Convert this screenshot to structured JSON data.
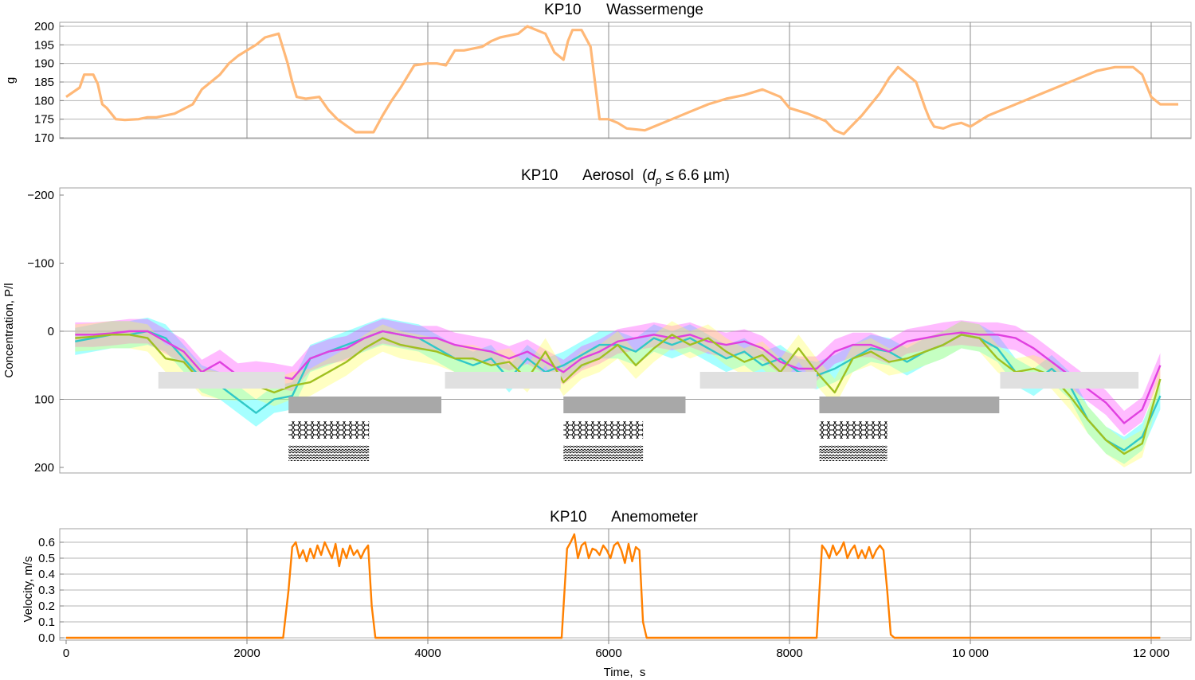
{
  "chart_data": [
    {
      "type": "line",
      "title": "KP10      Wassermenge",
      "ylabel": "g",
      "xlabel": "",
      "xlim": [
        0,
        12350
      ],
      "ylim": [
        170,
        200
      ],
      "xticks": [
        2000,
        4000,
        6000,
        8000,
        10000,
        12000
      ],
      "yticks": [
        170,
        175,
        180,
        185,
        190,
        195,
        200
      ],
      "ytick_labels": [
        "170",
        "175",
        "180",
        "185",
        "190",
        "195",
        "200"
      ],
      "grid": true,
      "series": [
        {
          "color": "#ffb877",
          "x": [
            0,
            150,
            200,
            300,
            350,
            400,
            450,
            550,
            650,
            800,
            900,
            1000,
            1200,
            1400,
            1500,
            1700,
            1800,
            1900,
            2000,
            2100,
            2200,
            2350,
            2450,
            2500,
            2550,
            2650,
            2800,
            2900,
            3000,
            3200,
            3300,
            3400,
            3500,
            3600,
            3700,
            3850,
            4000,
            4100,
            4200,
            4300,
            4400,
            4600,
            4700,
            4800,
            5000,
            5100,
            5300,
            5400,
            5500,
            5550,
            5600,
            5700,
            5800,
            5900,
            6000,
            6100,
            6200,
            6400,
            6500,
            6700,
            6900,
            7100,
            7300,
            7500,
            7700,
            7900,
            8000,
            8200,
            8400,
            8500,
            8600,
            8800,
            9000,
            9100,
            9200,
            9400,
            9500,
            9550,
            9600,
            9700,
            9800,
            9900,
            10000,
            10200,
            10400,
            10600,
            10800,
            11000,
            11200,
            11400,
            11600,
            11800,
            11900,
            12000,
            12100,
            12300
          ],
          "y": [
            181,
            183.5,
            187,
            187,
            184.5,
            179,
            178,
            175,
            174.8,
            175,
            175.5,
            175.5,
            176.5,
            179,
            183,
            187,
            190,
            192,
            193.5,
            195,
            197,
            198,
            190,
            185,
            181,
            180.5,
            181,
            177.5,
            175,
            171.5,
            171.5,
            171.5,
            176,
            180,
            183.5,
            189.5,
            190,
            190,
            189.5,
            193.5,
            193.5,
            194.5,
            196,
            197,
            198,
            200,
            198,
            193,
            191,
            196,
            199,
            199,
            194.5,
            175,
            175,
            174,
            172.5,
            172,
            173,
            175,
            177,
            179,
            180.5,
            181.5,
            183,
            181,
            178,
            176.5,
            174.5,
            172,
            171,
            176,
            182,
            186,
            189,
            185,
            178,
            175,
            173,
            172.5,
            173.5,
            174,
            173,
            176,
            178,
            180,
            182,
            184,
            186,
            188,
            189,
            189,
            187,
            181,
            179,
            179
          ]
        }
      ]
    },
    {
      "type": "area",
      "title": "KP10      Aerosol  (dp ≤ 6.6 µm)",
      "title_parts": {
        "main": "KP10      Aerosol  (",
        "sym": "d",
        "sub": "p",
        "tail": " ≤ 6.6 µm)"
      },
      "ylabel": "Concentration,  P/l",
      "xlabel": "",
      "xlim": [
        0,
        12350
      ],
      "ylim": [
        -210,
        210
      ],
      "yticks": [
        -200,
        -100,
        0,
        100,
        200
      ],
      "ytick_labels": [
        "−200",
        "−100",
        "0",
        "100",
        "200"
      ],
      "grid": "y-major",
      "series": [
        {
          "color": "#30c8c8",
          "band_color": "#00ffff",
          "band_halfwidth": 20,
          "x": [
            100,
            300,
            500,
            700,
            900,
            1100,
            1300,
            1500,
            1700,
            1900,
            2100,
            2300,
            2500,
            2700,
            2900,
            3100,
            3300,
            3500,
            3700,
            3900,
            4100,
            4300,
            4500,
            4700,
            4900,
            5100,
            5300,
            5500,
            5700,
            5900,
            6100,
            6300,
            6500,
            6700,
            6900,
            7100,
            7300,
            7500,
            7700,
            7900,
            8100,
            8300,
            8500,
            8700,
            8900,
            9100,
            9300,
            9500,
            9700,
            9900,
            10100,
            10300,
            10500,
            10700,
            10900,
            11100,
            11300,
            11500,
            11700,
            11900,
            12100
          ],
          "y": [
            15,
            10,
            5,
            5,
            0,
            10,
            40,
            70,
            80,
            100,
            120,
            100,
            95,
            40,
            30,
            20,
            10,
            0,
            5,
            10,
            25,
            40,
            50,
            40,
            70,
            40,
            60,
            50,
            35,
            20,
            20,
            30,
            10,
            20,
            10,
            25,
            40,
            30,
            50,
            40,
            60,
            65,
            55,
            40,
            25,
            30,
            45,
            30,
            20,
            5,
            10,
            25,
            60,
            75,
            55,
            80,
            130,
            160,
            175,
            155,
            95
          ]
        },
        {
          "color": "#e040e0",
          "band_color": "#ff3cff",
          "band_halfwidth": 18,
          "x": [
            100,
            300,
            500,
            700,
            900,
            1100,
            1300,
            1500,
            1700,
            1900,
            2100,
            2300,
            2500,
            2700,
            2900,
            3100,
            3300,
            3500,
            3700,
            3900,
            4100,
            4300,
            4500,
            4700,
            4900,
            5100,
            5300,
            5500,
            5700,
            5900,
            6100,
            6300,
            6500,
            6700,
            6900,
            7100,
            7300,
            7500,
            7700,
            7900,
            8100,
            8300,
            8500,
            8700,
            8900,
            9100,
            9300,
            9500,
            9700,
            9900,
            10100,
            10300,
            10500,
            10700,
            10900,
            11100,
            11300,
            11500,
            11700,
            11900,
            12100
          ],
          "y": [
            5,
            5,
            3,
            0,
            0,
            15,
            30,
            60,
            45,
            65,
            62,
            65,
            70,
            40,
            30,
            25,
            10,
            0,
            5,
            10,
            10,
            20,
            25,
            30,
            40,
            30,
            45,
            60,
            40,
            30,
            15,
            10,
            5,
            10,
            5,
            15,
            20,
            15,
            25,
            45,
            55,
            55,
            30,
            20,
            20,
            30,
            15,
            10,
            5,
            2,
            5,
            5,
            10,
            25,
            45,
            65,
            85,
            105,
            135,
            115,
            50
          ]
        },
        {
          "color": "#a0c020",
          "band_color": "#ffff50",
          "band_halfwidth": 20,
          "x": [
            100,
            300,
            500,
            700,
            900,
            1100,
            1300,
            1500,
            1700,
            1900,
            2100,
            2300,
            2500,
            2700,
            2900,
            3100,
            3300,
            3500,
            3700,
            3900,
            4100,
            4300,
            4500,
            4700,
            4900,
            5100,
            5300,
            5500,
            5700,
            5900,
            6100,
            6300,
            6500,
            6700,
            6900,
            7100,
            7300,
            7500,
            7700,
            7900,
            8100,
            8300,
            8500,
            8700,
            8900,
            9100,
            9300,
            9500,
            9700,
            9900,
            10100,
            10300,
            10500,
            10700,
            10900,
            11100,
            11300,
            11500,
            11700,
            11900,
            12100
          ],
          "y": [
            10,
            8,
            5,
            5,
            10,
            40,
            45,
            75,
            80,
            82,
            80,
            90,
            80,
            75,
            60,
            45,
            25,
            10,
            20,
            25,
            30,
            40,
            40,
            50,
            45,
            70,
            30,
            75,
            50,
            40,
            20,
            50,
            25,
            5,
            20,
            10,
            30,
            45,
            35,
            60,
            25,
            60,
            90,
            40,
            30,
            45,
            40,
            30,
            20,
            5,
            10,
            40,
            60,
            55,
            65,
            95,
            130,
            160,
            180,
            165,
            70
          ]
        }
      ],
      "highlight_boxes": [
        {
          "x0": 1220,
          "x1": 2420,
          "y0": -50,
          "y1": 200,
          "color": "#88e288",
          "fill_y0": -50,
          "fill_y1": -25
        },
        {
          "x0": 4270,
          "x1": 5470,
          "y0": -50,
          "y1": 200,
          "color": "#6a6af0",
          "fill_y0": -50,
          "fill_y1": -25
        },
        {
          "x0": 7080,
          "x1": 8300,
          "y0": -50,
          "y1": 200,
          "color": "#10c810",
          "fill_y0": -50,
          "fill_y1": -25
        },
        {
          "x0": 10660,
          "x1": 11860,
          "y0": -50,
          "y1": 200,
          "color": "#ff1515",
          "fill_y0": -50,
          "fill_y1": -25
        }
      ],
      "light_bars": [
        {
          "x0": 1020,
          "x1": 2420
        },
        {
          "x0": 4190,
          "x1": 5470
        },
        {
          "x0": 7010,
          "x1": 8300
        },
        {
          "x0": 10330,
          "x1": 11860
        }
      ],
      "dark_bars": [
        {
          "x0": 2460,
          "x1": 4150
        },
        {
          "x0": 5500,
          "x1": 6850
        },
        {
          "x0": 8330,
          "x1": 10320
        }
      ],
      "pattern_blocks": [
        {
          "x0": 2460,
          "x1": 3350
        },
        {
          "x0": 5500,
          "x1": 6380
        },
        {
          "x0": 8330,
          "x1": 9080
        }
      ],
      "light_bar_color": "#e0e0e0",
      "dark_bar_color": "#a8a8a8"
    },
    {
      "type": "line",
      "title": "KP10      Anemometer",
      "ylabel": "Velocity,  m/s",
      "xlabel": "Time,  s",
      "xlim": [
        0,
        12350
      ],
      "ylim": [
        0,
        0.68
      ],
      "xticks": [
        0,
        2000,
        4000,
        6000,
        8000,
        10000,
        12000
      ],
      "xtick_labels": [
        "0",
        "2000",
        "4000",
        "6000",
        "8000",
        "10 000",
        "12 000"
      ],
      "yticks": [
        0.0,
        0.1,
        0.2,
        0.3,
        0.4,
        0.5,
        0.6
      ],
      "ytick_labels": [
        "0.0",
        "0.1",
        "0.2",
        "0.3",
        "0.4",
        "0.5",
        "0.6"
      ],
      "grid": true,
      "series": [
        {
          "color": "#ff8000",
          "x": [
            0,
            2400,
            2460,
            2500,
            2540,
            2580,
            2620,
            2660,
            2700,
            2740,
            2780,
            2820,
            2860,
            2900,
            2940,
            2980,
            3020,
            3060,
            3100,
            3140,
            3180,
            3220,
            3260,
            3300,
            3340,
            3380,
            3420,
            5480,
            5540,
            5580,
            5620,
            5660,
            5700,
            5740,
            5780,
            5820,
            5860,
            5900,
            5940,
            5980,
            6020,
            6060,
            6100,
            6140,
            6180,
            6220,
            6260,
            6300,
            6340,
            6380,
            6420,
            8300,
            8360,
            8400,
            8440,
            8480,
            8520,
            8560,
            8600,
            8640,
            8680,
            8720,
            8760,
            8800,
            8840,
            8880,
            8920,
            8960,
            9000,
            9040,
            9080,
            9120,
            9160,
            12100
          ],
          "y": [
            0.0,
            0.0,
            0.3,
            0.57,
            0.6,
            0.5,
            0.55,
            0.48,
            0.56,
            0.5,
            0.58,
            0.52,
            0.6,
            0.55,
            0.5,
            0.59,
            0.45,
            0.56,
            0.5,
            0.58,
            0.52,
            0.55,
            0.5,
            0.55,
            0.58,
            0.2,
            0.0,
            0.0,
            0.56,
            0.6,
            0.65,
            0.5,
            0.58,
            0.6,
            0.5,
            0.56,
            0.55,
            0.52,
            0.58,
            0.55,
            0.5,
            0.58,
            0.6,
            0.55,
            0.47,
            0.59,
            0.48,
            0.57,
            0.55,
            0.1,
            0.0,
            0.0,
            0.58,
            0.55,
            0.5,
            0.58,
            0.52,
            0.55,
            0.6,
            0.5,
            0.55,
            0.58,
            0.5,
            0.55,
            0.5,
            0.57,
            0.5,
            0.55,
            0.58,
            0.55,
            0.3,
            0.02,
            0.0,
            0.0
          ]
        }
      ]
    }
  ]
}
